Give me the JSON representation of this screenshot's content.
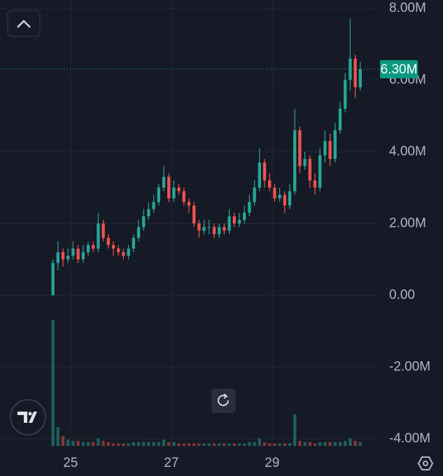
{
  "chart_data": {
    "type": "candlestick",
    "x": [
      24.65,
      24.75,
      24.85,
      24.95,
      25.05,
      25.15,
      25.25,
      25.35,
      25.45,
      25.55,
      25.65,
      25.75,
      25.85,
      25.95,
      26.05,
      26.15,
      26.25,
      26.35,
      26.45,
      26.55,
      26.65,
      26.75,
      26.85,
      26.95,
      27.05,
      27.15,
      27.25,
      27.35,
      27.45,
      27.55,
      27.65,
      27.75,
      27.85,
      27.95,
      28.05,
      28.15,
      28.25,
      28.35,
      28.45,
      28.55,
      28.65,
      28.75,
      28.85,
      28.95,
      29.05,
      29.15,
      29.25,
      29.35,
      29.45,
      29.55,
      29.65,
      29.75,
      29.85,
      29.95,
      30.05,
      30.15,
      30.25,
      30.35,
      30.45,
      30.55,
      30.65,
      30.75
    ],
    "open": [
      0,
      0.9,
      1.2,
      1.0,
      1.1,
      1.3,
      1.0,
      1.2,
      1.4,
      1.3,
      2.0,
      1.6,
      1.4,
      1.3,
      1.2,
      1.1,
      1.3,
      1.6,
      1.9,
      2.2,
      2.4,
      2.6,
      3.0,
      3.3,
      2.7,
      3.0,
      2.9,
      2.6,
      2.5,
      2.0,
      1.8,
      1.9,
      1.9,
      1.7,
      1.9,
      1.8,
      2.2,
      2.0,
      2.1,
      2.3,
      2.6,
      3.0,
      3.7,
      3.2,
      3.0,
      2.7,
      2.8,
      2.5,
      2.9,
      4.6,
      3.6,
      3.8,
      3.2,
      3.0,
      3.9,
      4.3,
      3.8,
      4.6,
      5.2,
      6.0,
      6.6,
      5.8
    ],
    "high": [
      1.0,
      1.5,
      1.3,
      1.3,
      1.5,
      1.4,
      1.4,
      1.5,
      1.5,
      2.3,
      2.1,
      1.7,
      1.5,
      1.4,
      1.3,
      1.4,
      1.7,
      2.1,
      2.4,
      2.6,
      2.8,
      3.1,
      3.6,
      3.4,
      3.2,
      3.1,
      3.0,
      2.7,
      2.6,
      2.1,
      2.1,
      2.1,
      2.0,
      2.0,
      2.0,
      2.4,
      2.3,
      2.3,
      2.5,
      2.8,
      3.2,
      4.1,
      3.8,
      3.4,
      3.1,
      3.0,
      2.9,
      3.1,
      5.2,
      4.7,
      4.0,
      3.9,
      3.4,
      4.1,
      4.6,
      4.5,
      4.8,
      5.4,
      6.2,
      7.7,
      6.7,
      6.5
    ],
    "low": [
      0,
      0.7,
      0.8,
      0.9,
      1.0,
      0.9,
      0.9,
      1.1,
      1.2,
      1.2,
      1.5,
      1.3,
      1.1,
      1.1,
      1.0,
      1.0,
      1.2,
      1.5,
      1.8,
      2.1,
      2.3,
      2.5,
      2.9,
      2.6,
      2.6,
      2.8,
      2.5,
      2.3,
      1.9,
      1.6,
      1.7,
      1.7,
      1.6,
      1.6,
      1.7,
      1.7,
      1.9,
      1.9,
      2.0,
      2.2,
      2.5,
      2.9,
      3.0,
      2.9,
      2.6,
      2.6,
      2.3,
      2.4,
      2.8,
      3.4,
      3.5,
      3.0,
      2.8,
      2.9,
      3.7,
      3.6,
      3.7,
      4.5,
      5.1,
      5.7,
      5.5,
      5.7
    ],
    "close": [
      0.9,
      1.2,
      1.0,
      1.1,
      1.3,
      1.0,
      1.2,
      1.4,
      1.3,
      2.0,
      1.6,
      1.4,
      1.3,
      1.2,
      1.1,
      1.3,
      1.6,
      1.9,
      2.2,
      2.4,
      2.6,
      3.0,
      3.3,
      2.7,
      3.0,
      2.9,
      2.6,
      2.5,
      2.0,
      1.8,
      1.9,
      1.9,
      1.7,
      1.9,
      1.8,
      2.2,
      2.0,
      2.1,
      2.3,
      2.6,
      3.0,
      3.7,
      3.2,
      3.0,
      2.7,
      2.8,
      2.5,
      2.9,
      4.6,
      3.6,
      3.8,
      3.2,
      3.0,
      3.9,
      4.3,
      3.8,
      4.6,
      5.2,
      6.0,
      6.6,
      5.8,
      6.3
    ],
    "volume": [
      100,
      15,
      8,
      5,
      4,
      4,
      3,
      3,
      3,
      6,
      4,
      3,
      2,
      2,
      2,
      2,
      3,
      3,
      3,
      3,
      3,
      3,
      5,
      3,
      3,
      2,
      2,
      2,
      2,
      2,
      2,
      2,
      2,
      2,
      2,
      2,
      2,
      2,
      2,
      3,
      3,
      6,
      3,
      2,
      2,
      2,
      2,
      2,
      25,
      4,
      3,
      3,
      2,
      3,
      3,
      3,
      3,
      3,
      4,
      6,
      4,
      3
    ],
    "up_color": "#26a69a",
    "down_color": "#ef5350",
    "xlim": [
      23.6,
      31.1
    ],
    "xticks": [
      25,
      27,
      29
    ],
    "ylim": [
      -4.2,
      8.23
    ],
    "yticks": [
      {
        "value": -4,
        "label": "-4.00M"
      },
      {
        "value": -2,
        "label": "-2.00M"
      },
      {
        "value": 0,
        "label": "0.00"
      },
      {
        "value": 2,
        "label": "2.00M"
      },
      {
        "value": 4,
        "label": "4.00M"
      },
      {
        "value": 6,
        "label": "6.00M"
      },
      {
        "value": 8,
        "label": "8.00M"
      }
    ],
    "grid": true,
    "last_price": {
      "value": 6.3,
      "label": "6.30M"
    }
  }
}
